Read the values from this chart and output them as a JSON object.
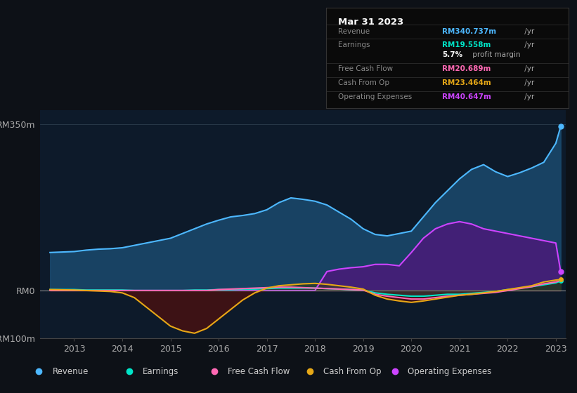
{
  "background_color": "#0d1117",
  "plot_bg_color": "#0d1a2a",
  "ylim": [
    -100,
    380
  ],
  "yticks": [
    -100,
    0,
    350
  ],
  "ytick_labels": [
    "-RM100m",
    "RM0",
    "RM350m"
  ],
  "years": [
    2012.5,
    2013.0,
    2013.25,
    2013.5,
    2013.75,
    2014.0,
    2014.25,
    2014.5,
    2014.75,
    2015.0,
    2015.25,
    2015.5,
    2015.75,
    2016.0,
    2016.25,
    2016.5,
    2016.75,
    2017.0,
    2017.25,
    2017.5,
    2017.75,
    2018.0,
    2018.25,
    2018.5,
    2018.75,
    2019.0,
    2019.25,
    2019.5,
    2019.75,
    2020.0,
    2020.25,
    2020.5,
    2020.75,
    2021.0,
    2021.25,
    2021.5,
    2021.75,
    2022.0,
    2022.25,
    2022.5,
    2022.75,
    2023.0,
    2023.1
  ],
  "revenue": [
    80,
    82,
    85,
    87,
    88,
    90,
    95,
    100,
    105,
    110,
    120,
    130,
    140,
    148,
    155,
    158,
    162,
    170,
    185,
    195,
    192,
    188,
    180,
    165,
    150,
    130,
    118,
    115,
    120,
    125,
    155,
    185,
    210,
    235,
    255,
    265,
    250,
    240,
    248,
    258,
    270,
    310,
    345
  ],
  "earnings": [
    2,
    2,
    1,
    1,
    1,
    1,
    0,
    0,
    0,
    0,
    0,
    1,
    1,
    2,
    2,
    3,
    3,
    4,
    5,
    5,
    5,
    5,
    4,
    3,
    2,
    1,
    -5,
    -8,
    -10,
    -12,
    -12,
    -10,
    -8,
    -8,
    -6,
    -4,
    -2,
    2,
    5,
    8,
    12,
    16,
    20
  ],
  "free_cash_flow": [
    0,
    0,
    0,
    0,
    0,
    0,
    0,
    0,
    0,
    0,
    0,
    0,
    0,
    2,
    3,
    4,
    5,
    6,
    7,
    7,
    6,
    5,
    4,
    3,
    2,
    1,
    -8,
    -12,
    -15,
    -18,
    -18,
    -15,
    -12,
    -10,
    -8,
    -6,
    -4,
    0,
    4,
    8,
    14,
    18,
    21
  ],
  "cash_from_op": [
    2,
    1,
    0,
    -1,
    -2,
    -5,
    -15,
    -35,
    -55,
    -75,
    -85,
    -90,
    -80,
    -60,
    -40,
    -20,
    -5,
    5,
    10,
    12,
    14,
    15,
    13,
    10,
    7,
    3,
    -10,
    -18,
    -22,
    -25,
    -22,
    -18,
    -14,
    -10,
    -8,
    -5,
    -2,
    2,
    6,
    10,
    18,
    22,
    23
  ],
  "operating_expenses": [
    0,
    0,
    0,
    0,
    0,
    0,
    0,
    0,
    0,
    0,
    0,
    0,
    0,
    0,
    0,
    0,
    0,
    0,
    0,
    0,
    0,
    0,
    40,
    45,
    48,
    50,
    55,
    55,
    52,
    80,
    110,
    130,
    140,
    145,
    140,
    130,
    125,
    120,
    115,
    110,
    105,
    100,
    40
  ],
  "legend": [
    {
      "label": "Revenue",
      "color": "#4db8ff"
    },
    {
      "label": "Earnings",
      "color": "#00e5c8"
    },
    {
      "label": "Free Cash Flow",
      "color": "#ff69b4"
    },
    {
      "label": "Cash From Op",
      "color": "#e6a817"
    },
    {
      "label": "Operating Expenses",
      "color": "#cc44ff"
    }
  ],
  "info_title": "Mar 31 2023",
  "info_rows": [
    {
      "label": "Revenue",
      "value": "RM340.737m",
      "color": "#4db8ff",
      "suffix": " /yr"
    },
    {
      "label": "Earnings",
      "value": "RM19.558m",
      "color": "#00e5c8",
      "suffix": " /yr"
    },
    {
      "label": "",
      "value": "",
      "color": "#aaaaaa",
      "suffix": "",
      "margin": true
    },
    {
      "label": "Free Cash Flow",
      "value": "RM20.689m",
      "color": "#ff69b4",
      "suffix": " /yr"
    },
    {
      "label": "Cash From Op",
      "value": "RM23.464m",
      "color": "#e6a817",
      "suffix": " /yr"
    },
    {
      "label": "Operating Expenses",
      "value": "RM40.647m",
      "color": "#cc44ff",
      "suffix": " /yr"
    }
  ]
}
